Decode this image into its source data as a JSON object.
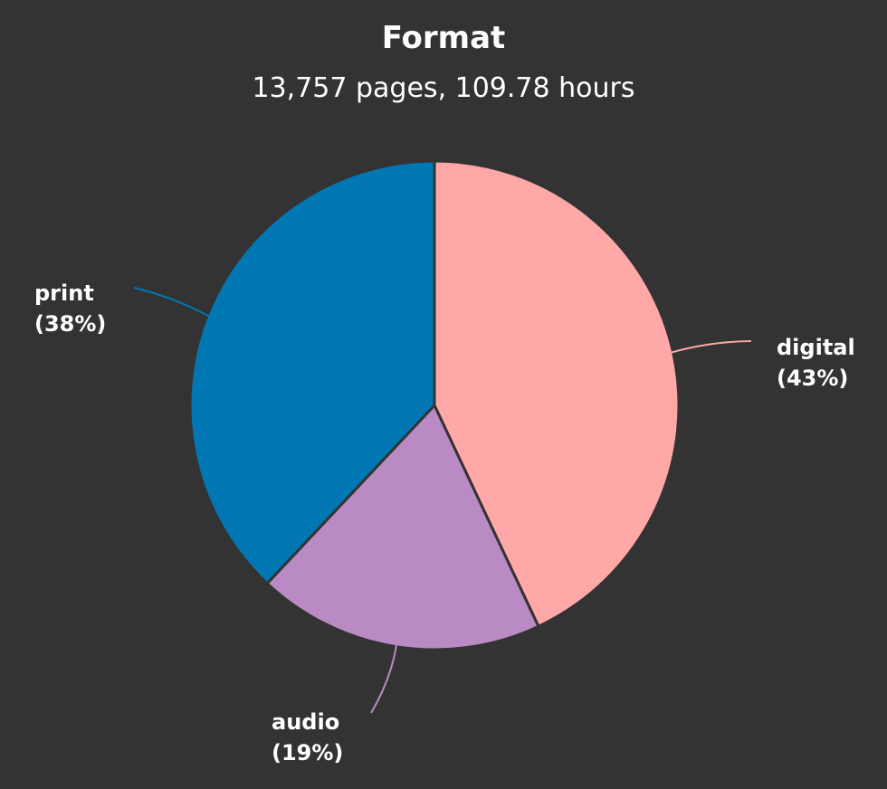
{
  "chart_data": {
    "type": "pie",
    "title": "Format",
    "subtitle": "13,757 pages, 109.78 hours",
    "slices": [
      {
        "label": "digital",
        "percent_label": "(43%)",
        "value": 43,
        "color": "#ffa8a8"
      },
      {
        "label": "audio",
        "percent_label": "(19%)",
        "value": 19,
        "color": "#b98ac4"
      },
      {
        "label": "print",
        "percent_label": "(38%)",
        "value": 38,
        "color": "#0077b3"
      }
    ]
  },
  "colors": {
    "background": "#333333",
    "slice_border": "#333333",
    "text": "#ffffff"
  }
}
